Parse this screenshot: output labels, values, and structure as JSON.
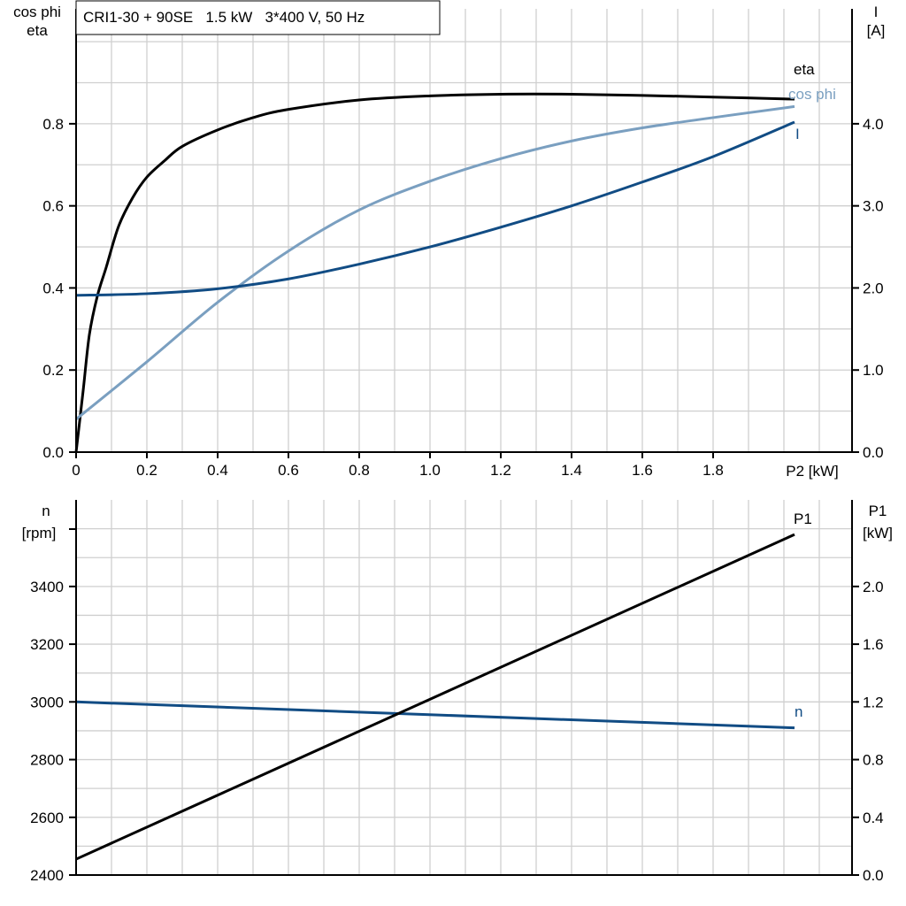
{
  "chart_data": [
    {
      "type": "line",
      "title": "CRI1-30 + 90SE   1.5 kW   3*400 V, 50 Hz",
      "xlabel": "P2 [kW]",
      "ylabel_left": [
        "cos phi",
        "eta"
      ],
      "ylabel_right": [
        "I",
        "[A]"
      ],
      "xlim": [
        0,
        2.2
      ],
      "ylim_left": [
        0,
        1.08
      ],
      "ylim_right": [
        0,
        5.4
      ],
      "x_ticks": [
        "0",
        "0.2",
        "0.4",
        "0.6",
        "0.8",
        "1.0",
        "1.2",
        "1.4",
        "1.6",
        "1.8"
      ],
      "y_ticks_left": [
        "0.0",
        "0.2",
        "0.4",
        "0.6",
        "0.8"
      ],
      "y_ticks_right": [
        "0.0",
        "1.0",
        "2.0",
        "3.0",
        "4.0"
      ],
      "grid": true,
      "series": [
        {
          "name": "eta",
          "axis": "left",
          "color": "#000000",
          "x": [
            0,
            0.02,
            0.0375,
            0.06,
            0.085,
            0.12,
            0.16,
            0.2,
            0.25,
            0.3,
            0.4,
            0.5,
            0.6,
            0.8,
            1.0,
            1.2,
            1.4,
            1.6,
            1.8,
            2.03
          ],
          "y": [
            0,
            0.15,
            0.286,
            0.38,
            0.45,
            0.55,
            0.62,
            0.67,
            0.71,
            0.745,
            0.785,
            0.815,
            0.835,
            0.858,
            0.868,
            0.872,
            0.872,
            0.869,
            0.865,
            0.86
          ]
        },
        {
          "name": "cos phi",
          "axis": "left",
          "color": "#7a9fc0",
          "x": [
            0,
            0.2,
            0.4,
            0.6,
            0.8,
            1.0,
            1.2,
            1.4,
            1.6,
            1.8,
            2.03
          ],
          "y": [
            0.08,
            0.22,
            0.365,
            0.49,
            0.59,
            0.66,
            0.715,
            0.758,
            0.79,
            0.815,
            0.842
          ]
        },
        {
          "name": "I",
          "axis": "right",
          "color": "#114c84",
          "x": [
            0,
            0.2,
            0.4,
            0.6,
            0.8,
            1.0,
            1.2,
            1.4,
            1.6,
            1.8,
            2.03
          ],
          "y": [
            1.91,
            1.93,
            1.99,
            2.11,
            2.29,
            2.5,
            2.74,
            3.0,
            3.29,
            3.6,
            4.02
          ]
        }
      ]
    },
    {
      "type": "line",
      "xlim": [
        0,
        2.2
      ],
      "ylabel_left": [
        "n",
        "[rpm]"
      ],
      "ylabel_right": [
        "P1",
        "[kW]"
      ],
      "ylim_left": [
        2400,
        3700
      ],
      "ylim_right": [
        0,
        2.6
      ],
      "y_ticks_left": [
        "2400",
        "2600",
        "2800",
        "3000",
        "3200",
        "3400"
      ],
      "y_ticks_right": [
        "0.0",
        "0.4",
        "0.8",
        "1.2",
        "1.6",
        "2.0"
      ],
      "grid": true,
      "series": [
        {
          "name": "n",
          "axis": "left",
          "color": "#114c84",
          "x": [
            0,
            2.03
          ],
          "y": [
            3000,
            2910
          ]
        },
        {
          "name": "P1",
          "axis": "right",
          "color": "#000000",
          "x": [
            0,
            2.03
          ],
          "y": [
            0.11,
            2.36
          ]
        }
      ]
    }
  ]
}
